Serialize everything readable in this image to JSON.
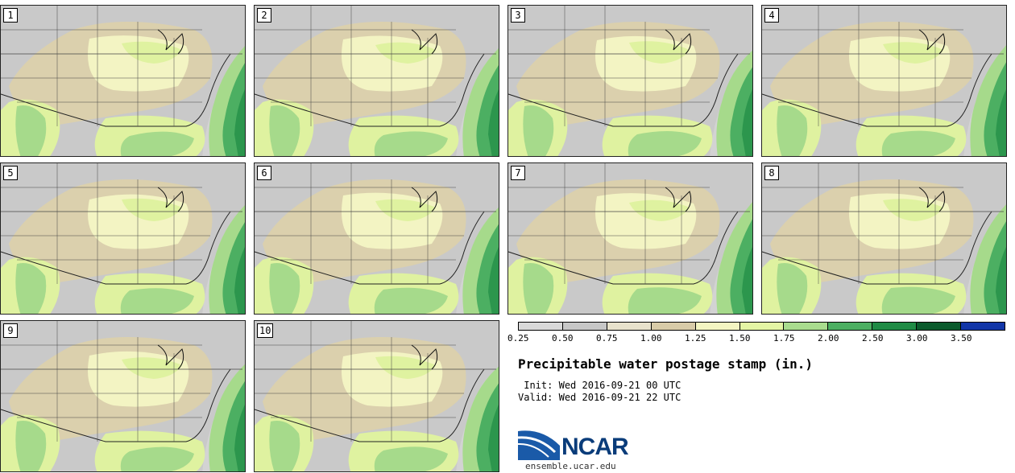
{
  "panels": [
    {
      "label": "1"
    },
    {
      "label": "2"
    },
    {
      "label": "3"
    },
    {
      "label": "4"
    },
    {
      "label": "5"
    },
    {
      "label": "6"
    },
    {
      "label": "7"
    },
    {
      "label": "8"
    },
    {
      "label": "9"
    },
    {
      "label": "10"
    }
  ],
  "legend": {
    "colors": [
      "#d9d9d9",
      "#c7c7c7",
      "#e8e2cc",
      "#d8cba8",
      "#f4f5c2",
      "#e4f5a4",
      "#a9dc8e",
      "#4caf62",
      "#1f8b45",
      "#0a5a2c",
      "#1236a8"
    ],
    "ticks": [
      "0.25",
      "0.50",
      "0.75",
      "1.00",
      "1.25",
      "1.50",
      "1.75",
      "2.00",
      "2.50",
      "3.00",
      "3.50"
    ]
  },
  "title": "Precipitable water postage stamp (in.)",
  "init": "Wed 2016-09-21 00 UTC",
  "valid": "Wed 2016-09-21 22 UTC",
  "init_label": " Init:",
  "valid_label": "Valid:",
  "logo": {
    "text": "NCAR",
    "site": "ensemble.ucar.edu"
  },
  "map_colors": {
    "dry": "#c9c9c9",
    "tan": "#dbd0ad",
    "pale": "#f3f4c3",
    "light": "#dff2a0",
    "mid": "#a6da8b",
    "green": "#4caf62",
    "dark": "#1f8b45",
    "ocean": "#d3d3d3"
  }
}
